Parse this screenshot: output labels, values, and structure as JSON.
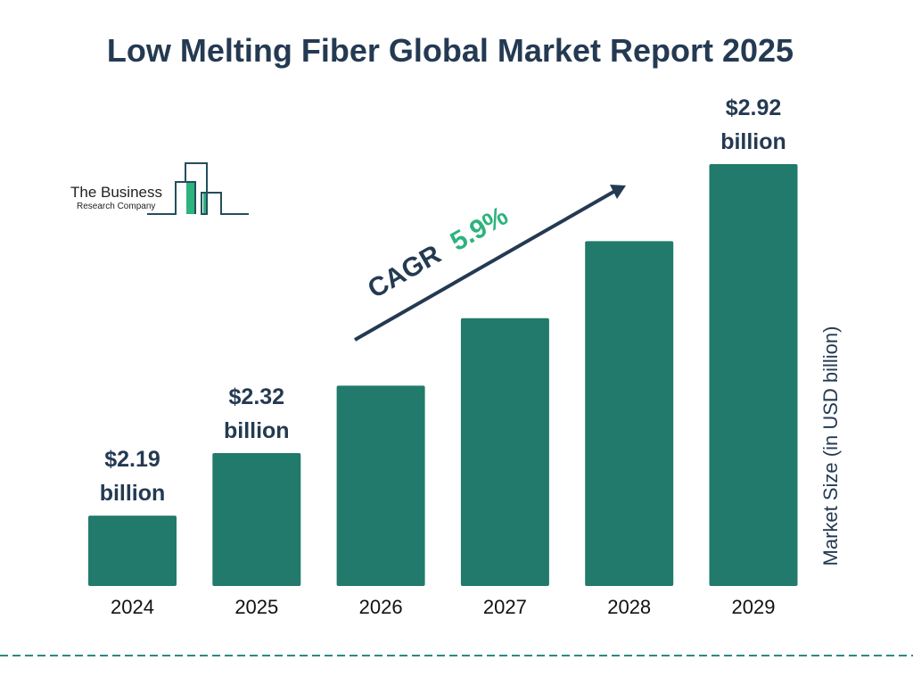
{
  "chart_data": {
    "type": "bar",
    "title": "Low Melting Fiber Global Market Report 2025",
    "categories": [
      "2024",
      "2025",
      "2026",
      "2027",
      "2028",
      "2029"
    ],
    "values": [
      2.19,
      2.32,
      2.46,
      2.6,
      2.76,
      2.92
    ],
    "data_labels": [
      {
        "category": "2024",
        "line1": "$2.19",
        "line2": "billion"
      },
      {
        "category": "2025",
        "line1": "$2.32",
        "line2": "billion"
      },
      {
        "category": "2029",
        "line1": "$2.92",
        "line2": "billion"
      }
    ],
    "ylabel": "Market Size (in USD billion)",
    "xlabel": "",
    "grid": false,
    "annotation": {
      "label": "CAGR",
      "value": "5.9%"
    },
    "colors": {
      "bar": "#217a6b",
      "text": "#243a52",
      "cagr": "#2db37e",
      "dashed_line": "#2a8a86"
    }
  },
  "logo": {
    "line1": "The Business",
    "line2": "Research Company"
  }
}
